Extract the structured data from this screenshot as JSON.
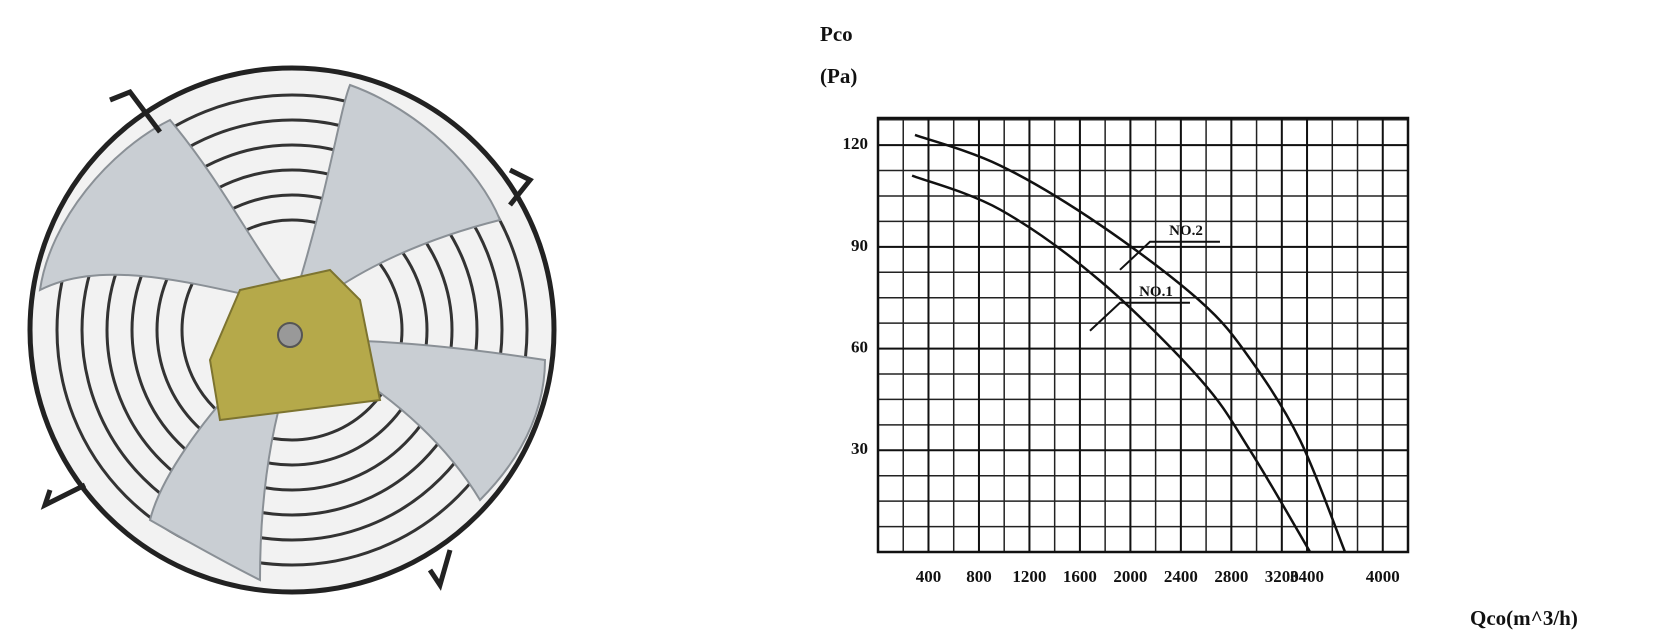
{
  "chart_data": {
    "type": "line",
    "y_label_line1": "Pco",
    "y_label_line2": "(Pa)",
    "x_label": "Qco(m^3/h)",
    "xlim": [
      0,
      4200
    ],
    "ylim": [
      0,
      128
    ],
    "xticks": [
      400,
      800,
      1200,
      1600,
      2000,
      2400,
      2800,
      3200,
      3400,
      4000
    ],
    "yticks": [
      30,
      60,
      90,
      120
    ],
    "grid": true,
    "series": [
      {
        "name": "NO.1",
        "color": "#111111",
        "x": [
          270,
          967,
          1759,
          2552,
          2948,
          3424
        ],
        "values": [
          111,
          101,
          80,
          51,
          30,
          0
        ]
      },
      {
        "name": "NO.2",
        "color": "#111111",
        "x": [
          293,
          967,
          1759,
          2552,
          2948,
          3344,
          3701
        ],
        "values": [
          123,
          114,
          96.5,
          74,
          57,
          33,
          0
        ]
      }
    ]
  }
}
